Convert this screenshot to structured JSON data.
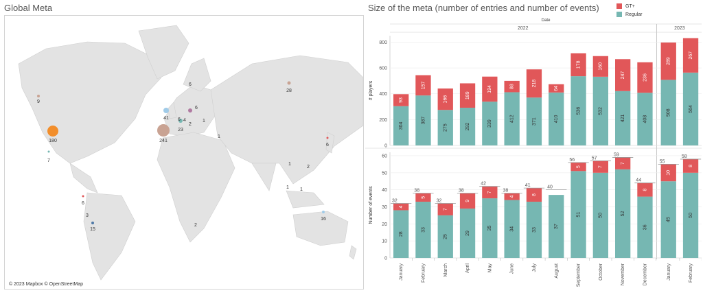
{
  "map_title": "Global Meta",
  "chart_title": "Size of the meta (number of entries and number of events)",
  "attribution": "© 2023 Mapbox © OpenStreetMap",
  "colors": {
    "gt": "#e15759",
    "regular": "#76b7b2",
    "bubble_us": "#f28e2b",
    "bubble_eu": "#c9a393"
  },
  "legend": [
    {
      "label": "GT+",
      "color": "#e15759"
    },
    {
      "label": "Regular",
      "color": "#76b7b2"
    }
  ],
  "map_labels": [
    {
      "label": "9"
    },
    {
      "label": "180"
    },
    {
      "label": "7"
    },
    {
      "label": "6"
    },
    {
      "label": "3"
    },
    {
      "label": "15"
    },
    {
      "label": "41"
    },
    {
      "label": "241"
    },
    {
      "label": "23"
    },
    {
      "label": "6"
    },
    {
      "label": "4"
    },
    {
      "label": "2"
    },
    {
      "label": "1"
    },
    {
      "label": "6"
    },
    {
      "label": "6"
    },
    {
      "label": "1"
    },
    {
      "label": "28"
    },
    {
      "label": "6"
    },
    {
      "label": "1"
    },
    {
      "label": "2"
    },
    {
      "label": "1"
    },
    {
      "label": "1"
    },
    {
      "label": "2"
    },
    {
      "label": "16"
    }
  ],
  "chart_data": {
    "type": "bar",
    "stacked": true,
    "column_header": "Date",
    "years": [
      {
        "label": "2022",
        "span": 12
      },
      {
        "label": "2023",
        "span": 2
      }
    ],
    "categories": [
      "January",
      "February",
      "March",
      "April",
      "May",
      "June",
      "July",
      "August",
      "September",
      "October",
      "November",
      "December",
      "January",
      "February"
    ],
    "players": {
      "ylabel": "# players",
      "ylim": [
        0,
        850
      ],
      "ticks": [
        0,
        200,
        400,
        600,
        800
      ],
      "series": [
        {
          "name": "Regular",
          "values": [
            304,
            387,
            275,
            292,
            339,
            412,
            371,
            410,
            536,
            532,
            421,
            408,
            508,
            564
          ]
        },
        {
          "name": "GT+",
          "values": [
            93,
            157,
            166,
            189,
            194,
            88,
            218,
            64,
            178,
            160,
            247,
            236,
            289,
            267
          ]
        }
      ]
    },
    "events": {
      "ylabel": "Number of events",
      "ylim": [
        0,
        62
      ],
      "ticks": [
        0,
        10,
        20,
        30,
        40,
        50,
        60
      ],
      "totals": [
        32,
        38,
        32,
        38,
        42,
        38,
        41,
        40,
        56,
        57,
        59,
        44,
        55,
        58
      ],
      "series": [
        {
          "name": "Regular",
          "values": [
            28,
            33,
            25,
            29,
            35,
            34,
            33,
            37,
            51,
            50,
            52,
            36,
            45,
            50
          ]
        },
        {
          "name": "GT+",
          "values": [
            4,
            5,
            7,
            9,
            7,
            4,
            8,
            "",
            5,
            7,
            7,
            8,
            10,
            8
          ]
        }
      ]
    }
  }
}
